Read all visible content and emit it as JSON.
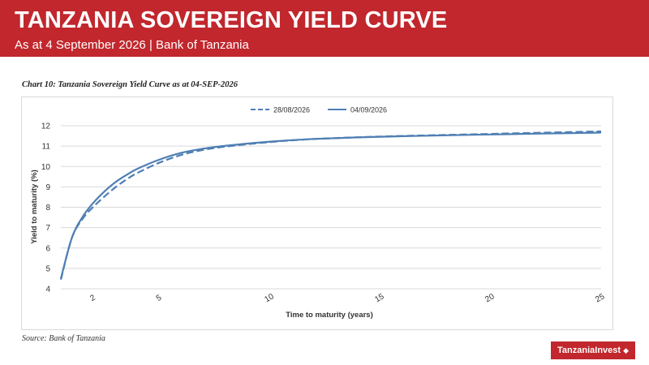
{
  "header": {
    "title": "TANZANIA SOVEREIGN YIELD CURVE",
    "subtitle": "As at 4 September 2026  |  Bank of Tanzania",
    "background_color": "#c1272d"
  },
  "chart_caption": "Chart 10: Tanzania Sovereign Yield Curve as at 04-SEP-2026",
  "source": "Source: Bank of Tanzania",
  "logo": {
    "text": "TanzaniaInvest",
    "icon": "tanzania-map-icon"
  },
  "chart_data": {
    "type": "line",
    "title": "",
    "xlabel": "Time to maturity (years)",
    "ylabel": "Yield to maturity (%)",
    "xlim": [
      0.5,
      25
    ],
    "ylim": [
      4,
      12
    ],
    "x_ticks": [
      2,
      5,
      10,
      15,
      20,
      25
    ],
    "y_ticks": [
      4,
      5,
      6,
      7,
      8,
      9,
      10,
      11,
      12
    ],
    "grid": "horizontal",
    "legend": "top-center",
    "series": [
      {
        "name": "28/08/2026",
        "style": "dashed",
        "color": "#4f7fb3",
        "x": [
          0.5,
          1,
          1.5,
          2,
          2.5,
          3,
          3.5,
          4,
          5,
          6,
          7,
          8,
          10,
          12,
          15,
          18,
          20,
          22,
          25
        ],
        "y": [
          4.45,
          6.5,
          7.45,
          8.05,
          8.55,
          9.0,
          9.38,
          9.7,
          10.2,
          10.58,
          10.82,
          10.98,
          11.2,
          11.35,
          11.47,
          11.55,
          11.6,
          11.65,
          11.72
        ]
      },
      {
        "name": "04/09/2026",
        "style": "solid",
        "color": "#4f7fb3",
        "x": [
          0.5,
          1,
          1.5,
          2,
          2.5,
          3,
          3.5,
          4,
          5,
          6,
          7,
          8,
          10,
          12,
          15,
          18,
          20,
          22,
          25
        ],
        "y": [
          4.5,
          6.5,
          7.55,
          8.25,
          8.8,
          9.25,
          9.6,
          9.9,
          10.35,
          10.68,
          10.88,
          11.02,
          11.22,
          11.35,
          11.46,
          11.53,
          11.57,
          11.61,
          11.66
        ]
      }
    ]
  }
}
